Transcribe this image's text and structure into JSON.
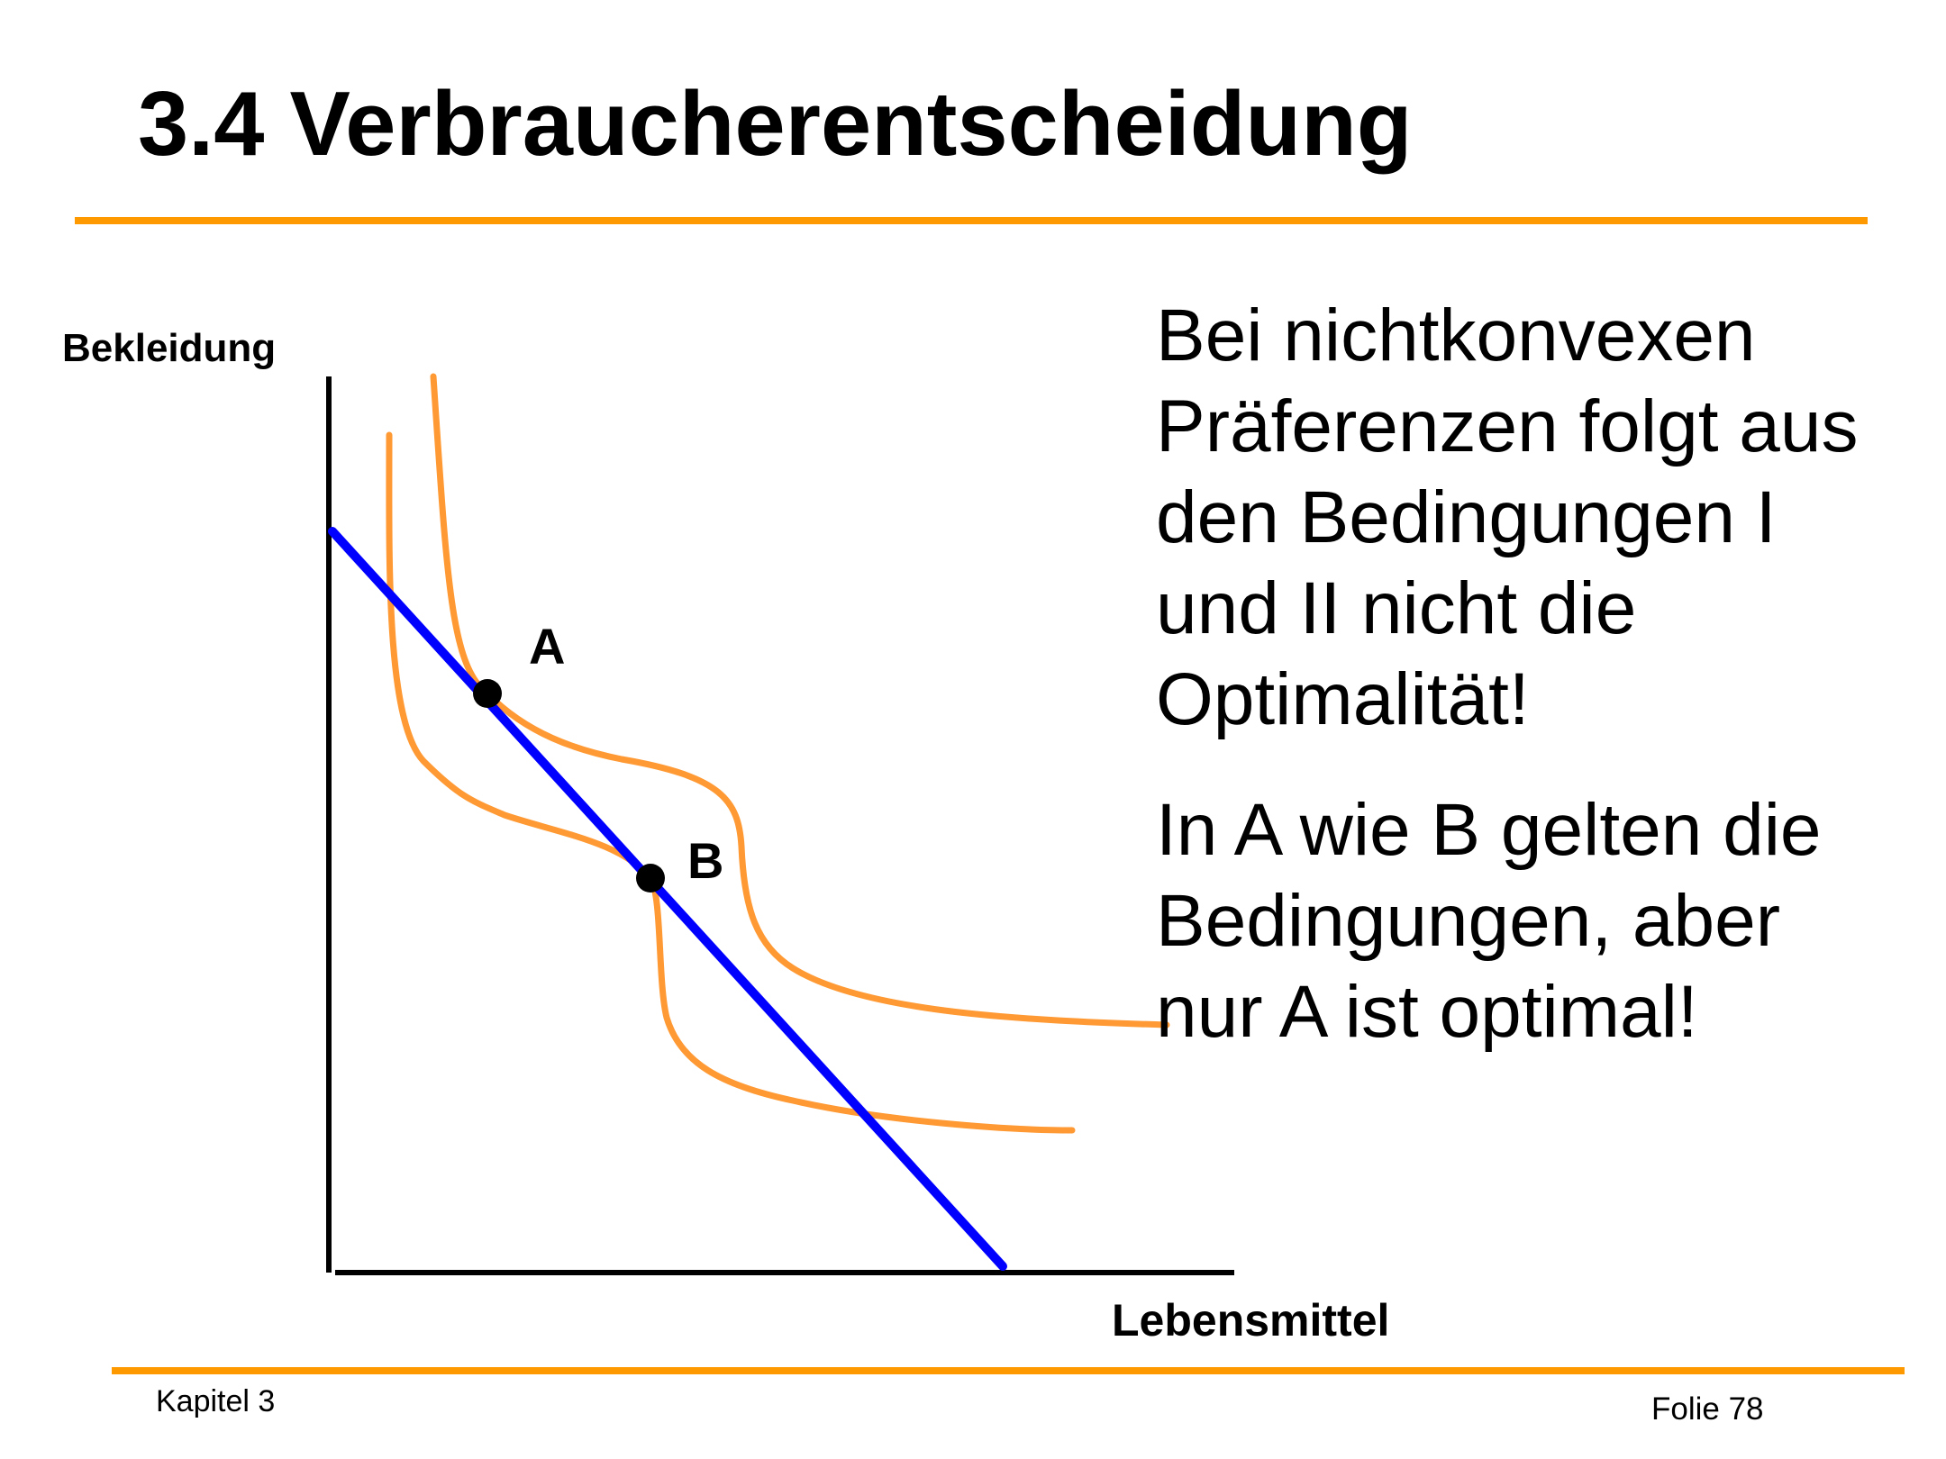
{
  "title": "3.4 Verbraucherentscheidung",
  "colors": {
    "accent": "#FF9900",
    "budget_line": "#0000FF",
    "indifference_curve": "#FF9933",
    "text": "#000000"
  },
  "diagram": {
    "y_axis_label": "Bekleidung",
    "x_axis_label": "Lebensmittel",
    "points": [
      {
        "label": "A"
      },
      {
        "label": "B"
      }
    ]
  },
  "text": {
    "paragraph1": [
      "Bei nichtkonvexen",
      "Präferenzen folgt aus",
      "den Bedingungen I",
      "und II nicht die",
      "Optimalität!"
    ],
    "paragraph2": [
      "In A wie B gelten die",
      "Bedingungen, aber",
      "nur A ist optimal!"
    ]
  },
  "footer": {
    "chapter": "Kapitel 3",
    "slide": "Folie 78"
  }
}
